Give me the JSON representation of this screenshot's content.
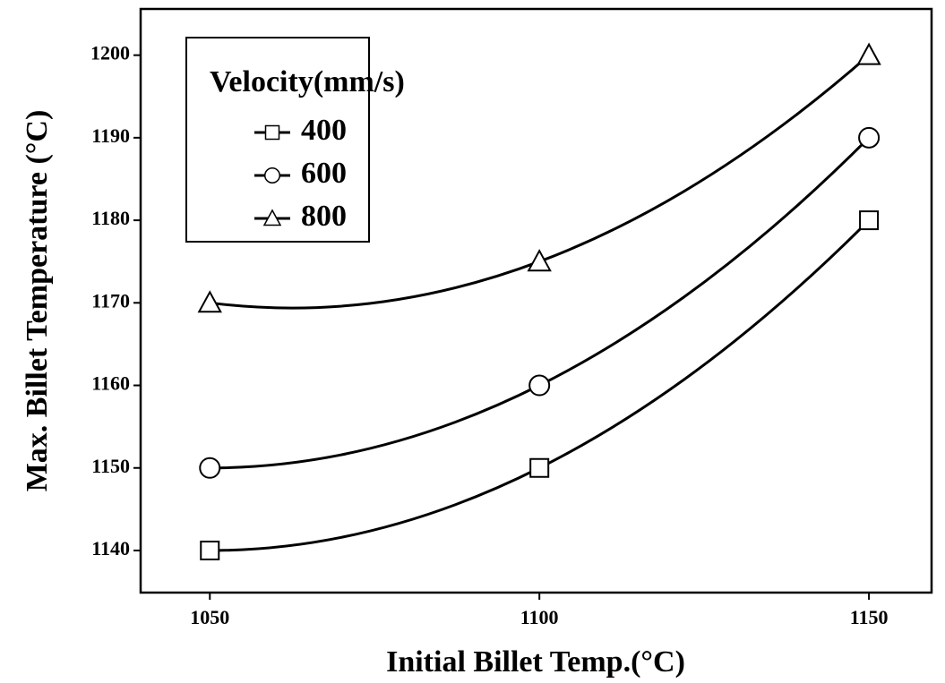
{
  "chart_data": {
    "type": "line",
    "x_label": "Initial Billet Temp.(°C)",
    "y_label": "Max. Billet Temperature (°C)",
    "legend_title": "Velocity(mm/s)",
    "x": [
      1050,
      1100,
      1150
    ],
    "series": [
      {
        "name": "400",
        "color": "#000000",
        "marker": "square",
        "values": [
          1140,
          1150,
          1180
        ]
      },
      {
        "name": "600",
        "color": "#000000",
        "marker": "circle",
        "values": [
          1150,
          1160,
          1190
        ]
      },
      {
        "name": "800",
        "color": "#000000",
        "marker": "triangle",
        "values": [
          1170,
          1175,
          1200
        ]
      }
    ],
    "xlim": [
      1039.5,
      1159.5
    ],
    "xticks": [
      1050,
      1100,
      1150
    ],
    "ylim": [
      1134.9,
      1205.6
    ],
    "yticks": [
      1140,
      1150,
      1160,
      1170,
      1180,
      1190,
      1200
    ],
    "grid": false,
    "legend": "upper left"
  }
}
